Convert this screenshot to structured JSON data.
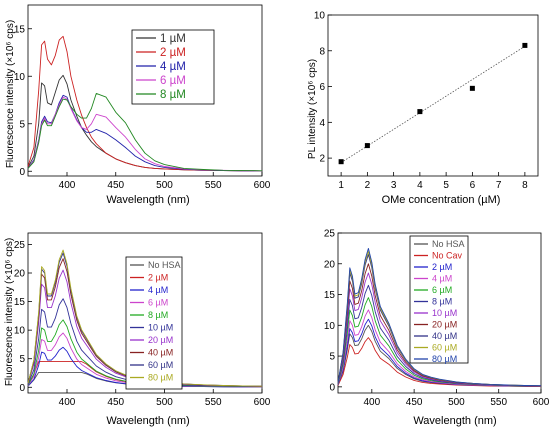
{
  "panels": [
    {
      "id": "tl",
      "type": "line",
      "xlabel": "Wavelength (nm)",
      "ylabel": "Fluorescence intensity (×10⁶ cps)",
      "xlim": [
        360,
        600
      ],
      "ylim": [
        -0.5,
        17.5
      ],
      "xticks": [
        400,
        450,
        500,
        550,
        600
      ],
      "yticks": [
        0,
        5,
        10,
        15
      ],
      "legend_position": "top-right",
      "series": [
        {
          "name": "1 µM",
          "color": "#333333",
          "x": [
            360,
            366,
            371,
            374,
            377,
            380,
            384,
            388,
            392,
            396,
            400,
            404,
            410,
            415,
            420,
            425,
            430,
            440,
            450,
            460,
            470,
            480,
            490,
            500,
            520,
            540,
            560,
            580,
            600
          ],
          "y": [
            0.4,
            1.6,
            5.0,
            9.3,
            9.0,
            7.2,
            7.0,
            8.3,
            9.6,
            10.1,
            9.2,
            7.5,
            5.8,
            4.6,
            3.8,
            3.1,
            2.6,
            1.9,
            1.3,
            0.9,
            0.6,
            0.4,
            0.3,
            0.25,
            0.15,
            0.1,
            0.07,
            0.05,
            0.04
          ]
        },
        {
          "name": "2 µM",
          "color": "#cc2222",
          "x": [
            360,
            366,
            371,
            374,
            377,
            380,
            384,
            388,
            392,
            396,
            400,
            404,
            410,
            415,
            420,
            425,
            430,
            440,
            450,
            460,
            470,
            480,
            490,
            500,
            520,
            540,
            560,
            580,
            600
          ],
          "y": [
            0.5,
            2.5,
            8.5,
            13.3,
            13.7,
            11.8,
            11.2,
            12.2,
            13.8,
            14.2,
            12.6,
            10.0,
            7.5,
            5.9,
            4.6,
            3.6,
            2.9,
            1.9,
            1.3,
            0.9,
            0.6,
            0.4,
            0.3,
            0.25,
            0.15,
            0.1,
            0.07,
            0.05,
            0.04
          ]
        },
        {
          "name": "4 µM",
          "color": "#2222aa",
          "x": [
            360,
            366,
            371,
            374,
            377,
            380,
            384,
            388,
            392,
            396,
            400,
            404,
            410,
            415,
            420,
            425,
            430,
            440,
            450,
            460,
            470,
            480,
            490,
            500,
            520,
            540,
            560,
            580,
            600
          ],
          "y": [
            0.3,
            1.2,
            3.3,
            5.2,
            5.8,
            5.2,
            5.1,
            6.0,
            7.2,
            8.0,
            7.8,
            6.7,
            5.4,
            4.6,
            4.1,
            4.1,
            4.4,
            4.0,
            3.3,
            2.5,
            1.6,
            1.0,
            0.6,
            0.4,
            0.2,
            0.12,
            0.08,
            0.05,
            0.04
          ]
        },
        {
          "name": "6 µM",
          "color": "#cc44cc",
          "x": [
            360,
            366,
            371,
            374,
            377,
            380,
            384,
            388,
            392,
            396,
            400,
            404,
            410,
            415,
            420,
            425,
            430,
            440,
            450,
            460,
            470,
            480,
            490,
            500,
            520,
            540,
            560,
            580,
            600
          ],
          "y": [
            0.3,
            1.1,
            3.2,
            5.0,
            5.6,
            5.0,
            5.0,
            6.0,
            7.0,
            7.8,
            7.6,
            6.6,
            5.3,
            4.6,
            4.4,
            5.0,
            6.0,
            5.7,
            4.6,
            3.6,
            2.3,
            1.3,
            0.8,
            0.5,
            0.25,
            0.15,
            0.1,
            0.06,
            0.04
          ]
        },
        {
          "name": "8 µM",
          "color": "#228822",
          "x": [
            360,
            366,
            371,
            374,
            377,
            380,
            384,
            388,
            392,
            396,
            400,
            404,
            410,
            415,
            420,
            425,
            430,
            440,
            450,
            460,
            470,
            480,
            490,
            500,
            520,
            540,
            560,
            580,
            600
          ],
          "y": [
            0.3,
            1.0,
            3.0,
            4.8,
            5.4,
            4.8,
            4.8,
            5.8,
            6.8,
            7.6,
            7.5,
            6.8,
            6.0,
            5.6,
            5.6,
            6.6,
            8.2,
            7.8,
            6.2,
            5.1,
            3.3,
            1.9,
            1.1,
            0.7,
            0.3,
            0.18,
            0.1,
            0.07,
            0.05
          ]
        }
      ]
    },
    {
      "id": "tr",
      "type": "scatter",
      "xlabel": "OMe concentration (µM)",
      "ylabel": "PL intensity (×10⁶ cps)",
      "xlim": [
        0.5,
        8.5
      ],
      "ylim": [
        1,
        10
      ],
      "xticks": [
        1,
        2,
        3,
        4,
        5,
        6,
        7,
        8
      ],
      "yticks": [
        2,
        4,
        6,
        8,
        10
      ],
      "points": {
        "x": [
          1,
          2,
          4,
          6,
          8
        ],
        "y": [
          1.8,
          2.7,
          4.6,
          5.9,
          8.3
        ],
        "color": "#000000"
      },
      "fit_line": {
        "x": [
          1,
          8
        ],
        "y": [
          1.75,
          8.25
        ],
        "color": "#555555"
      }
    },
    {
      "id": "bl",
      "type": "line",
      "xlabel": "Wavelength (nm)",
      "ylabel": "Fluorescence intensity (×10⁶ cps)",
      "xlim": [
        360,
        600
      ],
      "ylim": [
        -1,
        27
      ],
      "xticks": [
        400,
        450,
        500,
        550,
        600
      ],
      "yticks": [
        0,
        5,
        10,
        15,
        20,
        25
      ],
      "legend_position": "top-right",
      "shape": {
        "x": [
          360,
          366,
          371,
          374,
          377,
          380,
          384,
          388,
          392,
          396,
          400,
          404,
          410,
          415,
          420,
          425,
          430,
          440,
          450,
          460,
          470,
          480,
          490,
          500,
          520,
          540,
          560,
          580,
          600
        ],
        "y": [
          0.03,
          0.2,
          0.55,
          0.88,
          0.85,
          0.68,
          0.68,
          0.78,
          0.93,
          1.0,
          0.9,
          0.72,
          0.52,
          0.42,
          0.36,
          0.3,
          0.24,
          0.17,
          0.12,
          0.09,
          0.07,
          0.055,
          0.045,
          0.035,
          0.025,
          0.018,
          0.013,
          0.01,
          0.008
        ]
      },
      "series": [
        {
          "name": "No HSA",
          "color": "#555555",
          "peak": 2.6,
          "flat": 1.0
        },
        {
          "name": "2 µM",
          "color": "#cc2222",
          "peak": 4.5,
          "flat": 1.0
        },
        {
          "name": "4 µM",
          "color": "#2222cc",
          "peak": 7.0,
          "flat": 0
        },
        {
          "name": "6 µM",
          "color": "#cc44cc",
          "peak": 9.5,
          "flat": 0
        },
        {
          "name": "8 µM",
          "color": "#22aa22",
          "peak": 11.8,
          "flat": 0
        },
        {
          "name": "10 µM",
          "color": "#333399",
          "peak": 15.5,
          "flat": 0
        },
        {
          "name": "20 µM",
          "color": "#9933cc",
          "peak": 20.5,
          "flat": 0
        },
        {
          "name": "40 µM",
          "color": "#882222",
          "peak": 22.5,
          "flat": 0
        },
        {
          "name": "60 µM",
          "color": "#333388",
          "peak": 23.5,
          "flat": 0
        },
        {
          "name": "80 µM",
          "color": "#aaaa22",
          "peak": 24.0,
          "flat": 0
        }
      ]
    },
    {
      "id": "br",
      "type": "line",
      "xlabel": "Wavelength (nm)",
      "ylabel": "",
      "xlim": [
        360,
        600
      ],
      "ylim": [
        -1,
        25
      ],
      "xticks": [
        400,
        450,
        500,
        550,
        600
      ],
      "yticks": [
        0,
        5,
        10,
        15,
        20,
        25
      ],
      "legend_position": "top-right",
      "shape": {
        "x": [
          360,
          366,
          371,
          374,
          377,
          380,
          384,
          388,
          392,
          396,
          400,
          404,
          410,
          415,
          420,
          425,
          430,
          440,
          450,
          460,
          470,
          480,
          490,
          500,
          520,
          540,
          560,
          580,
          600
        ],
        "y": [
          0.03,
          0.25,
          0.6,
          0.86,
          0.8,
          0.67,
          0.68,
          0.78,
          0.92,
          1.0,
          0.9,
          0.74,
          0.58,
          0.52,
          0.46,
          0.38,
          0.3,
          0.2,
          0.13,
          0.09,
          0.07,
          0.055,
          0.045,
          0.035,
          0.025,
          0.018,
          0.013,
          0.01,
          0.008
        ]
      },
      "series": [
        {
          "name": "No HSA",
          "color": "#555555",
          "peak": 10.0,
          "flat": 0
        },
        {
          "name": "No Cav",
          "color": "#cc2222",
          "peak": 8.0,
          "flat": 0
        },
        {
          "name": "2 µM",
          "color": "#2222cc",
          "peak": 11.0,
          "flat": 0
        },
        {
          "name": "4 µM",
          "color": "#cc44cc",
          "peak": 12.5,
          "flat": 0
        },
        {
          "name": "6 µM",
          "color": "#22aa22",
          "peak": 14.5,
          "flat": 0
        },
        {
          "name": "8 µM",
          "color": "#333399",
          "peak": 16.5,
          "flat": 0
        },
        {
          "name": "10 µM",
          "color": "#9933cc",
          "peak": 18.5,
          "flat": 0
        },
        {
          "name": "20 µM",
          "color": "#882222",
          "peak": 20.0,
          "flat": 0
        },
        {
          "name": "40 µM",
          "color": "#333388",
          "peak": 21.5,
          "flat": 0
        },
        {
          "name": "60 µM",
          "color": "#aaaa22",
          "peak": 22.0,
          "flat": 0
        },
        {
          "name": "80 µM",
          "color": "#2244aa",
          "peak": 22.5,
          "flat": 0
        }
      ]
    }
  ]
}
